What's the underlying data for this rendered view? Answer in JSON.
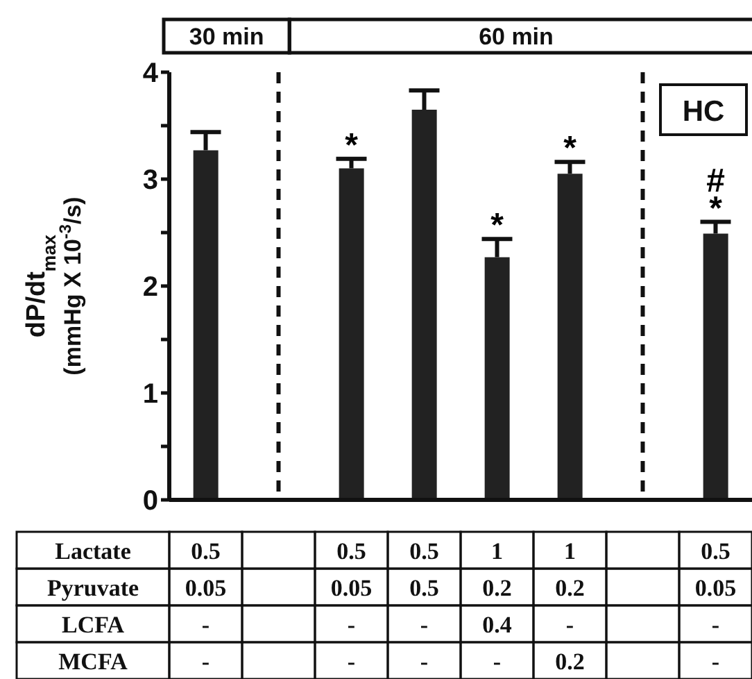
{
  "chart_data": {
    "type": "bar",
    "ylabel": "dP/dt$_{max}$\n(mmHg X 10$^{-3}$/s)",
    "xlabel": "Lactate\nPyruvate\nLCFA\nMCFA",
    "categories": [
      "0.5\n0.05\n-\n-",
      null,
      "0.5\n0.05\n-\n-",
      "0.5\n0.5\n-\n-",
      "1\n0.2\n0.4\n-",
      "1\n0.2\n-\n0.2",
      null,
      "0.5\n0.05\n-\n-"
    ],
    "values": [
      3.27,
      null,
      3.1,
      3.65,
      2.27,
      3.05,
      null,
      2.49
    ],
    "errors": [
      0.17,
      null,
      0.09,
      0.18,
      0.17,
      0.11,
      null,
      0.11
    ],
    "value_labels": [
      null,
      null,
      "*",
      null,
      "*",
      "*",
      null,
      "#\n*"
    ],
    "color": "#222222",
    "ylim": [
      0,
      4
    ],
    "yticks": [
      0,
      {
        "value": 0.5,
        "label": null
      },
      1,
      {
        "value": 1.5,
        "label": null
      },
      2,
      {
        "value": 2.5,
        "label": null
      },
      3,
      {
        "value": 3.5,
        "label": null
      },
      4
    ],
    "annotations": [
      "30 min",
      "60 min",
      "HC"
    ]
  }
}
